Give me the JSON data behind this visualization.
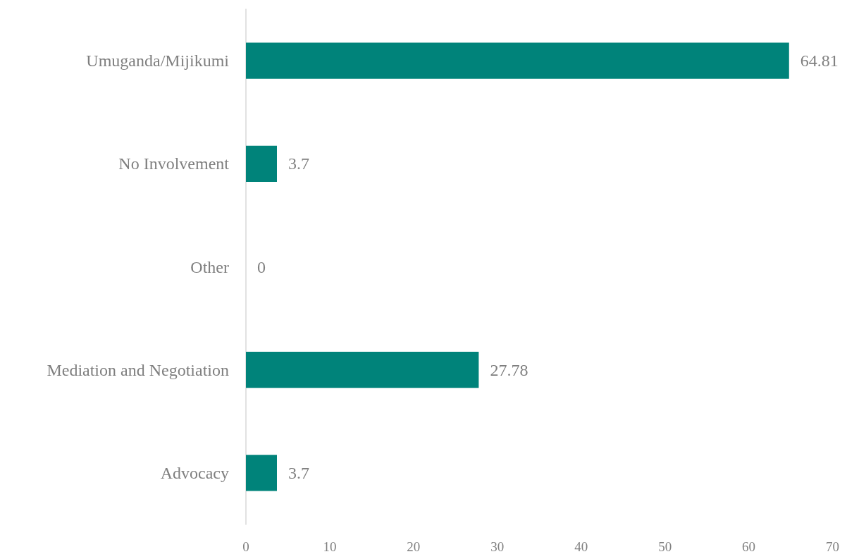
{
  "chart_data": {
    "type": "bar",
    "orientation": "horizontal",
    "categories": [
      "Umuganda/Mijikumi",
      "No Involvement",
      "Other",
      "Mediation and Negotiation",
      "Advocacy"
    ],
    "values": [
      64.81,
      3.7,
      0,
      27.78,
      3.7
    ],
    "color": "#00837a",
    "data_labels": true,
    "grid": false,
    "xlim": [
      0,
      70
    ],
    "xticks": [
      0,
      10,
      20,
      30,
      40,
      50,
      60,
      70
    ]
  }
}
